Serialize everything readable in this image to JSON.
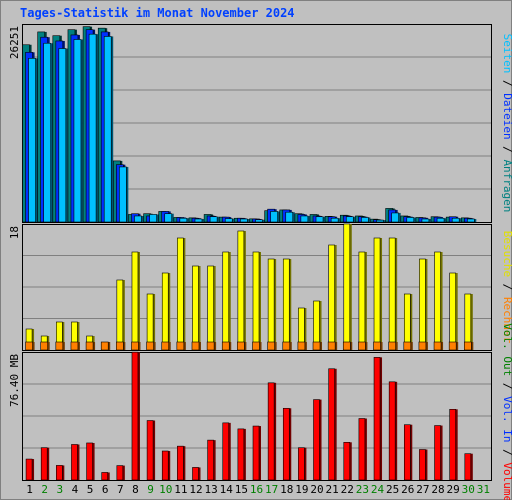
{
  "chart_data": {
    "type": "bar",
    "title": "Tages-Statistik im Monat November 2024",
    "categories": [
      "1",
      "2",
      "3",
      "4",
      "5",
      "6",
      "7",
      "8",
      "9",
      "10",
      "11",
      "12",
      "13",
      "14",
      "15",
      "16",
      "17",
      "18",
      "19",
      "20",
      "21",
      "22",
      "23",
      "24",
      "25",
      "26",
      "27",
      "28",
      "29",
      "30",
      "31"
    ],
    "weekend_days": [
      "2",
      "3",
      "9",
      "10",
      "16",
      "17",
      "23",
      "24",
      "30",
      "31"
    ],
    "panels": [
      {
        "id": "top",
        "scale_label": "26251",
        "ymax": 26251,
        "series": [
          {
            "name": "Anfragen",
            "color": "#008080",
            "values": [
              23500,
              25200,
              24700,
              25500,
              25900,
              25700,
              8100,
              1000,
              1100,
              1400,
              600,
              550,
              1000,
              650,
              500,
              420,
              1500,
              1600,
              1100,
              1000,
              750,
              900,
              800,
              380,
              1800,
              800,
              600,
              700,
              650,
              550,
              null
            ]
          },
          {
            "name": "Dateien",
            "color": "#0030ff",
            "values": [
              22500,
              24500,
              24000,
              24800,
              25500,
              25200,
              7600,
              1100,
              800,
              1400,
              600,
              500,
              800,
              650,
              500,
              400,
              1700,
              1600,
              1000,
              800,
              700,
              800,
              700,
              300,
              1600,
              700,
              550,
              650,
              700,
              500,
              null
            ]
          },
          {
            "name": "Seiten",
            "color": "#00c0ff",
            "values": [
              21700,
              23700,
              23000,
              24200,
              24900,
              24600,
              7300,
              800,
              1000,
              1100,
              500,
              400,
              700,
              450,
              400,
              300,
              1400,
              1300,
              800,
              700,
              500,
              700,
              600,
              250,
              1200,
              600,
              400,
              500,
              500,
              400,
              null
            ]
          }
        ],
        "legend": [
          "Anfragen",
          "Dateien",
          "Seiten"
        ]
      },
      {
        "id": "middle",
        "scale_label": "18",
        "ymax": 18,
        "series": [
          {
            "name": "Besuche",
            "color": "#ffff00",
            "values": [
              3,
              2,
              4,
              4,
              2,
              1,
              10,
              14,
              8,
              11,
              16,
              12,
              12,
              14,
              17,
              14,
              13,
              13,
              6,
              7,
              15,
              18,
              14,
              16,
              16,
              8,
              13,
              14,
              11,
              8,
              null
            ]
          },
          {
            "name": "Rechner",
            "color": "#ff8000",
            "values": [
              1,
              1,
              1,
              1,
              1,
              1,
              1,
              1,
              1,
              1,
              1,
              1,
              1,
              1,
              1,
              1,
              1,
              1,
              1,
              1,
              1,
              1,
              1,
              1,
              1,
              1,
              1,
              1,
              1,
              1,
              null
            ]
          }
        ],
        "legend": [
          "Besuche",
          "Rechner"
        ]
      },
      {
        "id": "bottom",
        "scale_label": "76.40 MB",
        "ymax": 76.4,
        "unit": "MB",
        "series": [
          {
            "name": "Volumen",
            "color": "#ff0000",
            "values": [
              12.5,
              19.3,
              8.7,
              21.2,
              22.1,
              4.5,
              8.6,
              76.3,
              35.5,
              17.3,
              20.2,
              7.5,
              23.8,
              34.1,
              30.5,
              32.2,
              58.0,
              42.8,
              19.3,
              48.0,
              66.4,
              22.5,
              36.7,
              73.2,
              58.6,
              33.0,
              18.2,
              32.5,
              42.2,
              15.7,
              null
            ]
          }
        ],
        "legend": [
          "Volumen",
          "Vol. In",
          "Vol. Out"
        ],
        "legend_colors": [
          "#ff0000",
          "#0030ff",
          "#008000"
        ]
      }
    ],
    "legend_colors_top": [
      "#008080",
      "#0030ff",
      "#00c0ff"
    ],
    "legend_colors_middle": [
      "#ffff00",
      "#ff8000"
    ]
  }
}
